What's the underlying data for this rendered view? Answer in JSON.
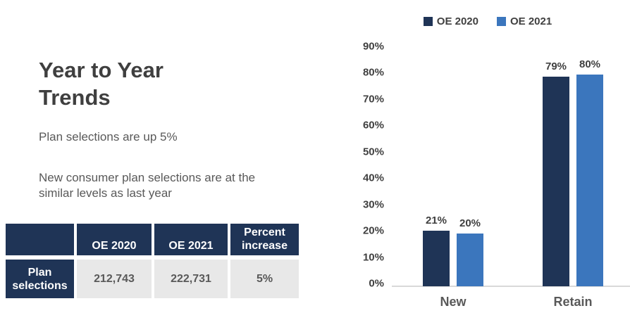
{
  "left": {
    "title": "Year to Year\nTrends",
    "paragraph1": "Plan selections are up 5%",
    "paragraph2": "New consumer plan selections are at the similar levels as last year"
  },
  "table": {
    "headers": [
      "",
      "OE 2020",
      "OE 2021",
      "Percent increase"
    ],
    "rows": [
      {
        "label": "Plan selections",
        "values": [
          "212,743",
          "222,731",
          "5%"
        ]
      }
    ]
  },
  "chart_data": {
    "type": "bar",
    "categories": [
      "New",
      "Retain"
    ],
    "series": [
      {
        "name": "OE 2020",
        "color": "#1F3456",
        "values": [
          21,
          79
        ],
        "labels": [
          "21%",
          "79%"
        ]
      },
      {
        "name": "OE 2021",
        "color": "#3B76BD",
        "values": [
          20,
          80
        ],
        "labels": [
          "20%",
          "80%"
        ]
      }
    ],
    "yticks": [
      "0%",
      "10%",
      "20%",
      "30%",
      "40%",
      "50%",
      "60%",
      "70%",
      "80%",
      "90%"
    ],
    "ylim": [
      0,
      90
    ],
    "ylabel": "",
    "xlabel": "",
    "grid": false,
    "legend_position": "top",
    "value_labels_shown": true
  },
  "colors": {
    "navy": "#1F3456",
    "blue": "#3B76BD",
    "title_text": "#3F3F3F",
    "body_text": "#595959",
    "axis_text": "#404040",
    "table_cell_bg": "#E8E8E8",
    "axis_line": "#D9D9D9"
  }
}
